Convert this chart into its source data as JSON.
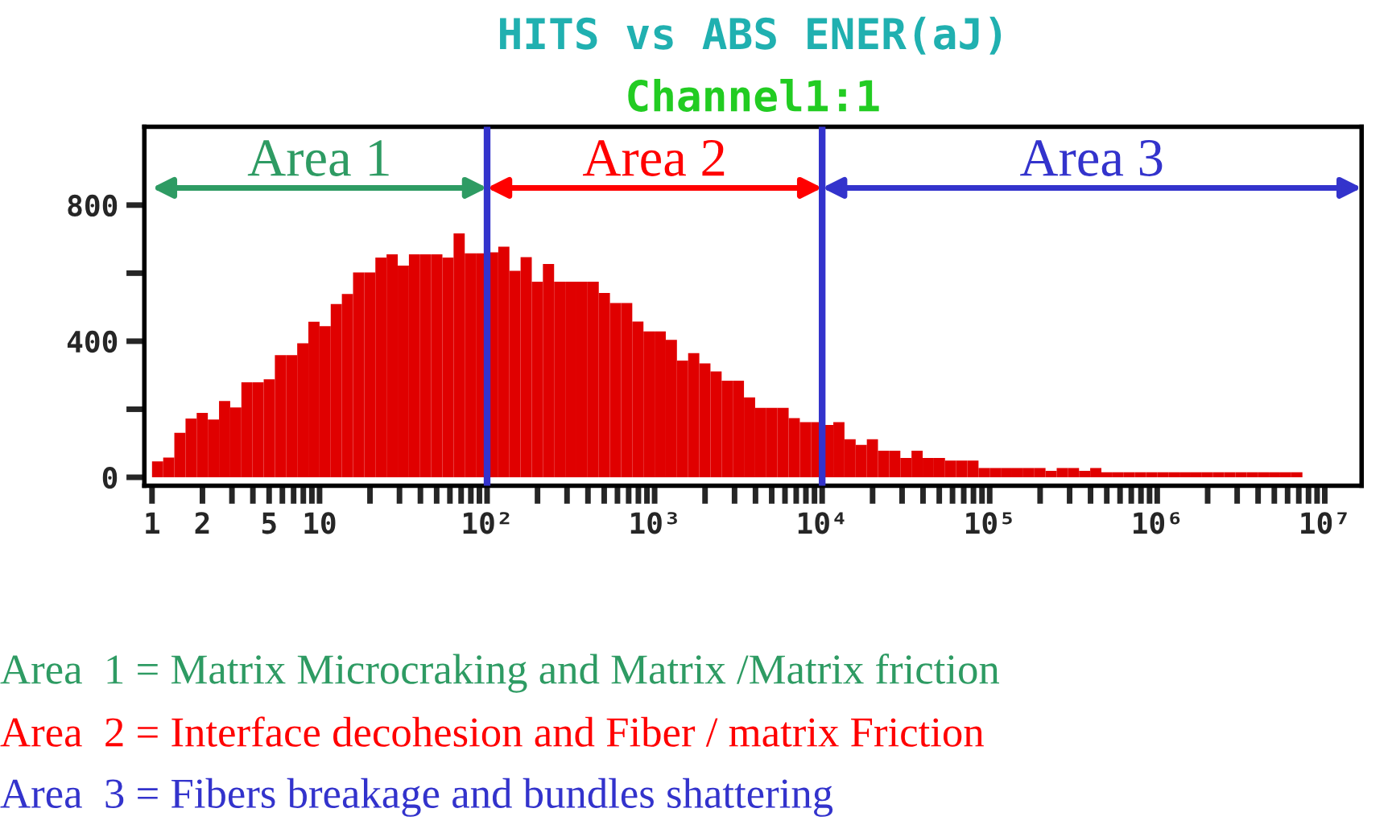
{
  "chart_data": {
    "type": "histogram",
    "title": "HITS vs ABS ENER(aJ)",
    "subtitle": "Channel1:1",
    "bins": [
      1,
      1.166,
      1.359,
      1.585,
      1.848,
      2.154,
      2.512,
      2.929,
      3.415,
      3.981,
      4.642,
      5.412,
      6.31,
      7.356,
      8.577,
      10,
      11.66,
      13.59,
      15.85,
      18.48,
      21.54,
      25.12,
      29.29,
      34.15,
      39.81,
      46.42,
      54.12,
      63.1,
      73.56,
      85.77,
      100,
      116.6,
      135.9,
      158.5,
      184.8,
      215.4,
      251.2,
      292.9,
      341.5,
      398.1,
      464.2,
      541.2,
      631,
      735.6,
      857.7,
      1000,
      1166,
      1359,
      1585,
      1848,
      2154,
      2512,
      2929,
      3415,
      3981,
      4642,
      5412,
      6310,
      7356,
      8577,
      10000,
      11660,
      13590,
      15850,
      18480,
      21540,
      25120,
      29290,
      34150,
      39810,
      46420,
      54120,
      63100,
      73560,
      85770,
      100000,
      116600,
      135900,
      158500,
      184800,
      215400,
      251200,
      292900,
      341500,
      398100,
      464200,
      541200,
      631000,
      735600,
      857700,
      1000000,
      1166000,
      1359000,
      1585000,
      1848000,
      2154000,
      2512000,
      2929000,
      3415000,
      3981000,
      4642000,
      5412000,
      6310000,
      7356000
    ],
    "values": [
      47,
      58,
      131,
      173,
      189,
      170,
      224,
      205,
      279,
      279,
      288,
      359,
      359,
      394,
      457,
      444,
      509,
      539,
      602,
      602,
      646,
      655,
      622,
      655,
      655,
      655,
      646,
      717,
      658,
      658,
      661,
      678,
      607,
      647,
      575,
      627,
      575,
      575,
      575,
      575,
      542,
      512,
      512,
      458,
      429,
      429,
      404,
      343,
      365,
      335,
      311,
      284,
      284,
      235,
      204,
      204,
      204,
      174,
      162,
      162,
      154,
      162,
      112,
      95,
      112,
      78,
      78,
      57,
      78,
      57,
      57,
      49,
      49,
      49,
      27,
      27,
      27,
      27,
      27,
      27,
      19,
      27,
      27,
      19,
      27,
      15,
      15,
      15,
      15,
      15,
      15,
      15,
      15,
      15,
      15,
      15,
      15,
      15,
      15,
      15,
      15,
      15,
      15
    ],
    "color": "#e00000",
    "log": "x",
    "xlim": [
      0.9,
      16600000
    ],
    "ylim": [
      -25,
      1030
    ],
    "xticks": [
      1,
      {
        "value": 2,
        "label": "2"
      },
      {
        "value": 3,
        "label": null
      },
      {
        "value": 4,
        "label": null
      },
      {
        "value": 5,
        "label": "5"
      },
      {
        "value": 6,
        "label": null
      },
      {
        "value": 7,
        "label": null
      },
      {
        "value": 8,
        "label": null
      },
      {
        "value": 9,
        "label": null
      },
      10,
      {
        "value": 20,
        "label": null
      },
      {
        "value": 30,
        "label": null
      },
      {
        "value": 40,
        "label": null
      },
      {
        "value": 50,
        "label": null
      },
      {
        "value": 60,
        "label": null
      },
      {
        "value": 70,
        "label": null
      },
      {
        "value": 80,
        "label": null
      },
      {
        "value": 90,
        "label": null
      },
      {
        "value": 100,
        "label": "10²"
      },
      {
        "value": 200,
        "label": null
      },
      {
        "value": 300,
        "label": null
      },
      {
        "value": 400,
        "label": null
      },
      {
        "value": 500,
        "label": null
      },
      {
        "value": 600,
        "label": null
      },
      {
        "value": 700,
        "label": null
      },
      {
        "value": 800,
        "label": null
      },
      {
        "value": 900,
        "label": null
      },
      {
        "value": 1000,
        "label": "10³"
      },
      {
        "value": 2000,
        "label": null
      },
      {
        "value": 3000,
        "label": null
      },
      {
        "value": 4000,
        "label": null
      },
      {
        "value": 5000,
        "label": null
      },
      {
        "value": 6000,
        "label": null
      },
      {
        "value": 7000,
        "label": null
      },
      {
        "value": 8000,
        "label": null
      },
      {
        "value": 9000,
        "label": null
      },
      {
        "value": 10000,
        "label": "10⁴"
      },
      {
        "value": 20000,
        "label": null
      },
      {
        "value": 30000,
        "label": null
      },
      {
        "value": 40000,
        "label": null
      },
      {
        "value": 50000,
        "label": null
      },
      {
        "value": 60000,
        "label": null
      },
      {
        "value": 70000,
        "label": null
      },
      {
        "value": 80000,
        "label": null
      },
      {
        "value": 90000,
        "label": null
      },
      {
        "value": 100000,
        "label": "10⁵"
      },
      {
        "value": 200000,
        "label": null
      },
      {
        "value": 300000,
        "label": null
      },
      {
        "value": 400000,
        "label": null
      },
      {
        "value": 500000,
        "label": null
      },
      {
        "value": 600000,
        "label": null
      },
      {
        "value": 700000,
        "label": null
      },
      {
        "value": 800000,
        "label": null
      },
      {
        "value": 900000,
        "label": null
      },
      {
        "value": 1000000,
        "label": "10⁶"
      },
      {
        "value": 2000000,
        "label": null
      },
      {
        "value": 3000000,
        "label": null
      },
      {
        "value": 4000000,
        "label": null
      },
      {
        "value": 5000000,
        "label": null
      },
      {
        "value": 6000000,
        "label": null
      },
      {
        "value": 7000000,
        "label": null
      },
      {
        "value": 8000000,
        "label": null
      },
      {
        "value": 9000000,
        "label": null
      },
      {
        "value": 10000000,
        "label": "10⁷"
      }
    ],
    "yticks": [
      0,
      {
        "value": 200,
        "label": null
      },
      400,
      {
        "value": 600,
        "label": null
      },
      800
    ],
    "grid": false,
    "legend": false,
    "ref_lines": [
      {
        "axis": "x",
        "value": 100,
        "color": "#3333cc"
      },
      {
        "axis": "x",
        "value": 10000,
        "color": "#3333cc"
      }
    ],
    "annotations": [
      "Area 1",
      "Area 2",
      "Area 3",
      "Area  1 = Matrix Microcraking and Matrix /Matrix friction",
      "Area  2 = Interface decohesion and Fiber / matrix Friction",
      "Area  3 = Fibers breakage and bundles shattering"
    ]
  }
}
